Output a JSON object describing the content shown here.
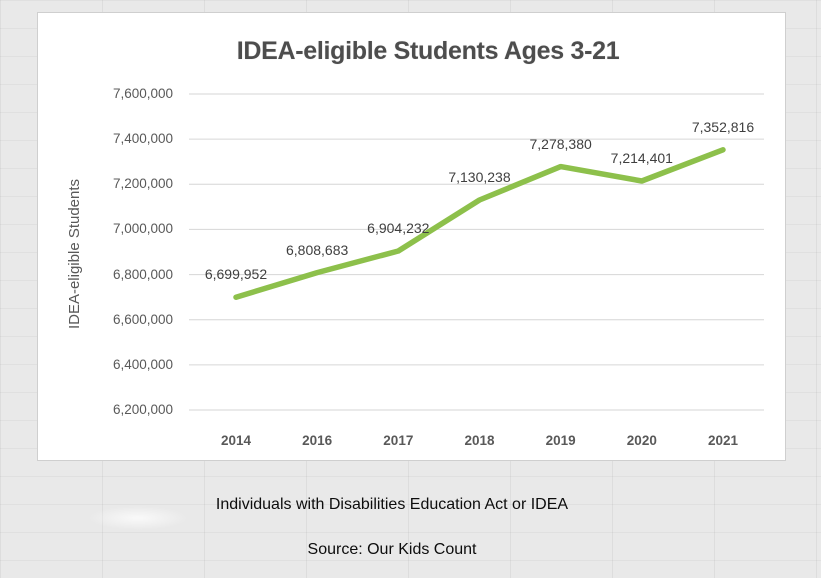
{
  "page": {
    "background_color": "#e9e9e9"
  },
  "chart": {
    "title": "IDEA-eligible Students Ages 3-21",
    "y_axis_title": "IDEA-eligible Students"
  },
  "chart_data": {
    "type": "line",
    "title": "IDEA-eligible Students Ages 3-21",
    "xlabel": "",
    "ylabel": "IDEA-eligible Students",
    "categories": [
      "2014",
      "2016",
      "2017",
      "2018",
      "2019",
      "2020",
      "2021"
    ],
    "values": [
      6699952,
      6808683,
      6904232,
      7130238,
      7278380,
      7214401,
      7352816
    ],
    "value_labels": [
      "6,699,952",
      "6,808,683",
      "6,904,232",
      "7,130,238",
      "7,278,380",
      "7,214,401",
      "7,352,816"
    ],
    "y_tick_labels": [
      "7,600,000",
      "7,400,000",
      "7,200,000",
      "7,000,000",
      "6,800,000",
      "6,600,000",
      "6,400,000",
      "6,200,000"
    ],
    "ylim": [
      6200000,
      7600000
    ],
    "grid": true,
    "legend": "none",
    "line_color": "#8dc04b"
  },
  "captions": {
    "line1": "Individuals with Disabilities Education Act or IDEA",
    "line2": "Source: Our Kids Count"
  }
}
